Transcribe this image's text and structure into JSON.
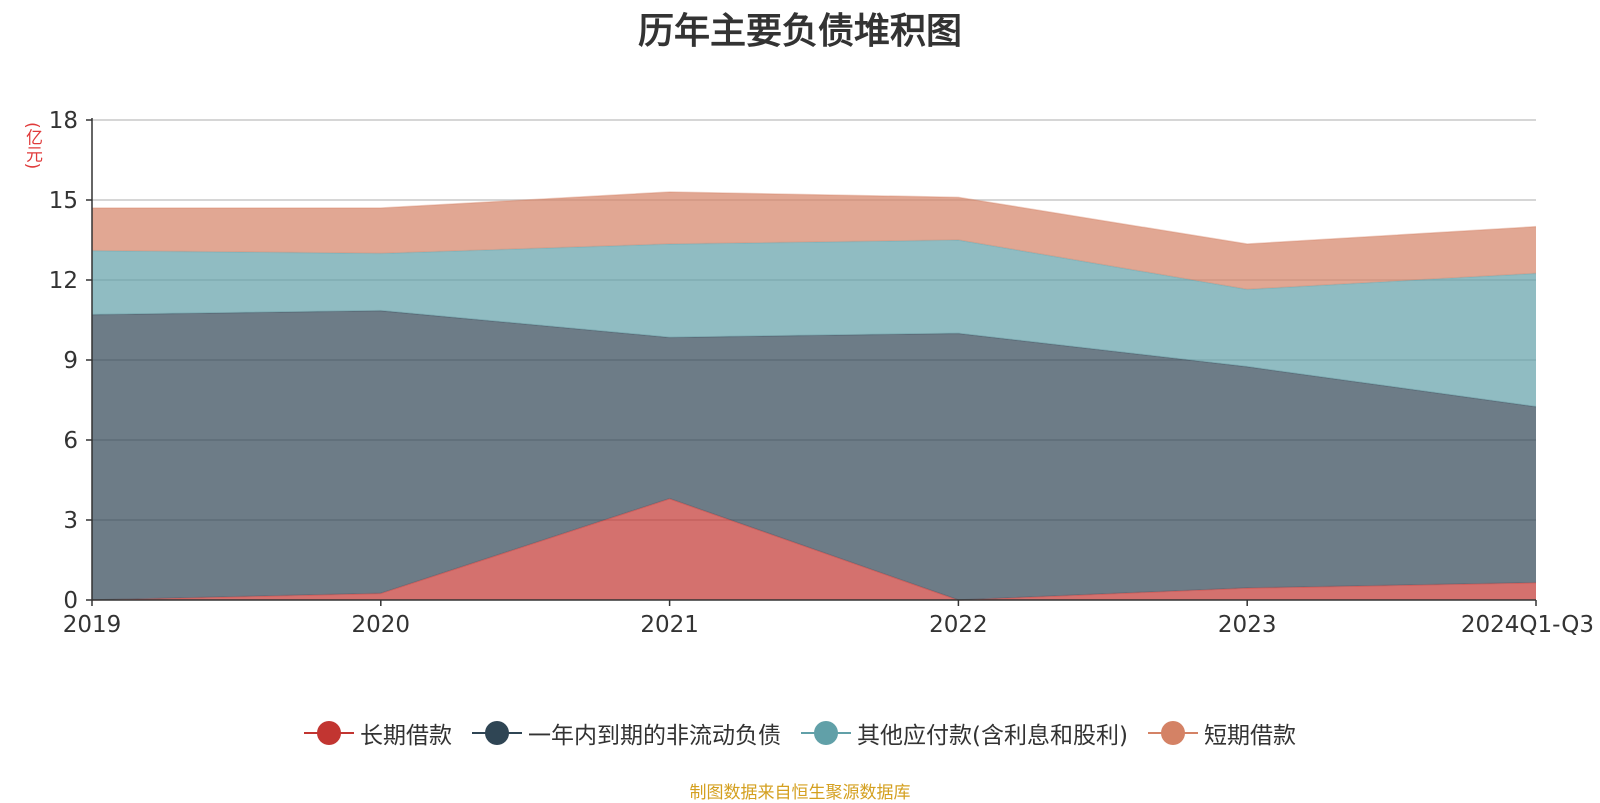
{
  "chart_data": {
    "type": "area",
    "stacked": true,
    "title": "历年主要负债堆积图",
    "unit_label": "(亿元)",
    "categories": [
      "2019",
      "2020",
      "2021",
      "2022",
      "2023",
      "2024Q1-Q3"
    ],
    "ylim": [
      0,
      18
    ],
    "yticks": [
      0,
      3,
      6,
      9,
      12,
      15,
      18
    ],
    "grid": true,
    "legend_position": "bottom",
    "series": [
      {
        "name": "长期借款",
        "color": "#c23531",
        "values": [
          0.0,
          0.25,
          3.8,
          0.0,
          0.45,
          0.65
        ]
      },
      {
        "name": "一年内到期的非流动负债",
        "color": "#2f4554",
        "values": [
          10.7,
          10.6,
          6.05,
          10.0,
          8.3,
          6.6
        ]
      },
      {
        "name": "其他应付款(含利息和股利)",
        "color": "#61a0a8",
        "values": [
          2.4,
          2.15,
          3.5,
          3.5,
          2.9,
          5.0
        ]
      },
      {
        "name": "短期借款",
        "color": "#d48265",
        "values": [
          1.6,
          1.7,
          1.95,
          1.6,
          1.7,
          1.75
        ]
      }
    ]
  },
  "source_note": "制图数据来自恒生聚源数据库"
}
